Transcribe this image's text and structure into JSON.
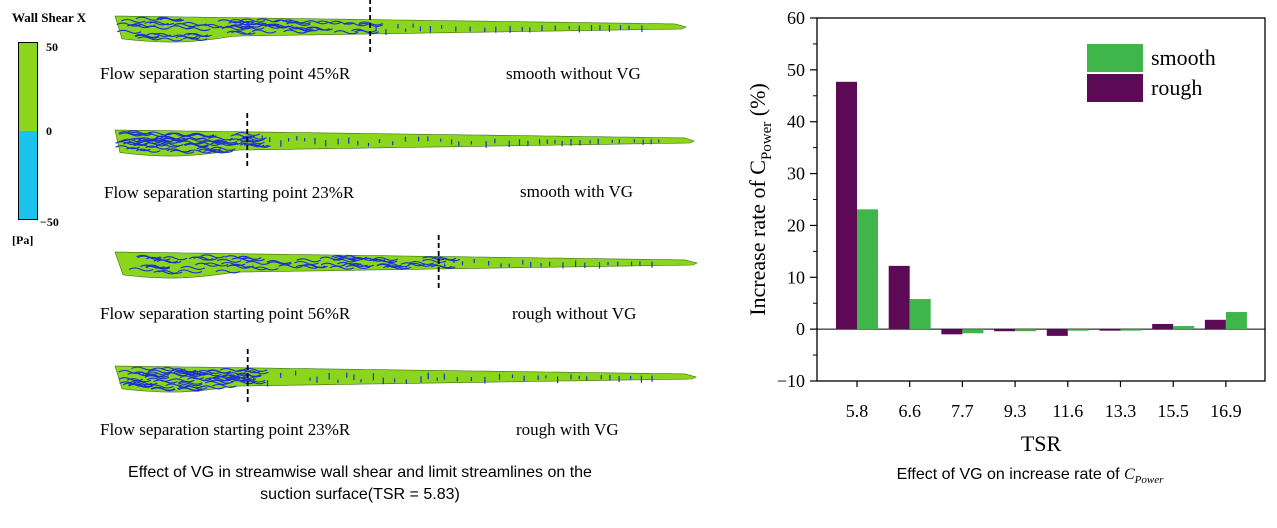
{
  "left_panel": {
    "legend_title": "Wall Shear X",
    "legend_ticks": {
      "top": "50",
      "mid": "0",
      "bottom": "−50"
    },
    "legend_unit": "[Pa]",
    "colors": {
      "positive": "#8bd61c",
      "negative": "#19c3ec",
      "streamline": "#1b2fd6"
    },
    "blades": [
      {
        "caption_left": "Flow separation  starting point 45%R",
        "caption_right": "smooth  without  VG",
        "separation_fraction": 0.45
      },
      {
        "caption_left": "Flow separation  starting point 23%R",
        "caption_right": "smooth  with  VG",
        "separation_fraction": 0.23
      },
      {
        "caption_left": "Flow separation  starting point 56%R",
        "caption_right": "rough  without  VG",
        "separation_fraction": 0.56
      },
      {
        "caption_left": "Flow separation  starting point 23%R",
        "caption_right": "rough  with  VG",
        "separation_fraction": 0.23
      }
    ],
    "footer_line1": "Effect of VG in streamwise wall shear and limit streamlines on the",
    "footer_line2": "suction surface(TSR = 5.83)"
  },
  "right_panel": {
    "footer_prefix": "Effect of VG on increase rate of ",
    "footer_symbol": "C",
    "footer_subscript": "Power"
  },
  "chart_data": {
    "type": "bar",
    "categories": [
      "5.8",
      "6.6",
      "7.7",
      "9.3",
      "11.6",
      "13.3",
      "15.5",
      "16.9"
    ],
    "series": [
      {
        "name": "rough",
        "color": "#5c0a55",
        "values": [
          47.7,
          12.2,
          -1.0,
          -0.4,
          -1.3,
          -0.1,
          1.0,
          1.8
        ]
      },
      {
        "name": "smooth",
        "color": "#3fb54a",
        "values": [
          23.1,
          5.8,
          -0.8,
          -0.4,
          -0.3,
          -0.1,
          0.6,
          3.3
        ]
      }
    ],
    "xlabel": "TSR",
    "ylabel_prefix": "Increase rate of C",
    "ylabel_subscript": "Power",
    "ylabel_suffix": " (%)",
    "ylim": [
      -10,
      60
    ],
    "yticks": [
      -10,
      0,
      10,
      20,
      30,
      40,
      50,
      60
    ],
    "legend_order": [
      "smooth",
      "rough"
    ],
    "legend_position": "top-right",
    "grid": false
  }
}
